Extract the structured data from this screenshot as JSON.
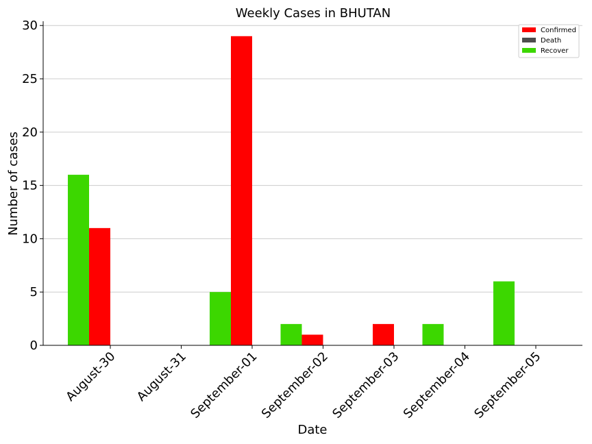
{
  "chart_data": {
    "type": "bar",
    "title": "Weekly Cases in BHUTAN",
    "xlabel": "Date",
    "ylabel": "Number of cases",
    "categories": [
      "August-30",
      "August-31",
      "September-01",
      "September-02",
      "September-03",
      "September-04",
      "September-05"
    ],
    "series": [
      {
        "name": "Recover",
        "color": "#3cd700",
        "values": [
          16,
          0,
          5,
          2,
          0,
          2,
          6
        ]
      },
      {
        "name": "Confirmed",
        "color": "#ff0000",
        "values": [
          11,
          0,
          29,
          1,
          2,
          0,
          0
        ]
      },
      {
        "name": "Death",
        "color": "#4d4d4d",
        "values": [
          0,
          0,
          0,
          0,
          0,
          0,
          0
        ]
      }
    ],
    "legend_order": [
      "Confirmed",
      "Death",
      "Recover"
    ],
    "ylim": [
      0,
      30.4
    ],
    "yticks": [
      0,
      5,
      10,
      15,
      20,
      25,
      30
    ],
    "grid": "y",
    "legend_position": "top-right"
  }
}
